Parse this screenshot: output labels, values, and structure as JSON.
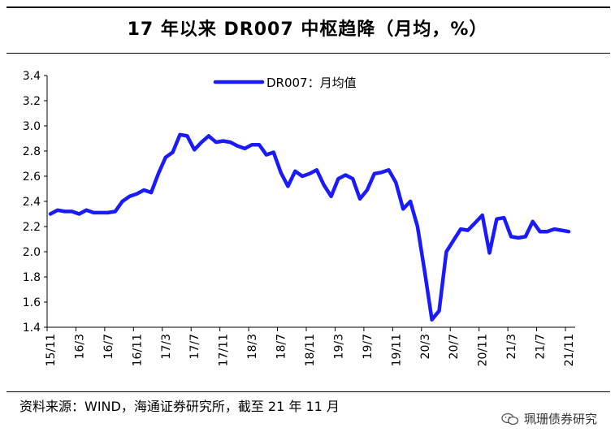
{
  "title": "17 年以来 DR007 中枢趋降（月均，%）",
  "source": "资料来源：WIND，海通证券研究所，截至 21 年 11 月",
  "watermark": {
    "text": "珮珊债券研究",
    "icon": "wechat-icon"
  },
  "colors": {
    "line": "#1a1aff",
    "axis": "#000000"
  },
  "chart_data": {
    "type": "line",
    "title": "17 年以来 DR007 中枢趋降（月均，%）",
    "xlabel": "",
    "ylabel": "",
    "ylim": [
      1.4,
      3.4
    ],
    "yticks": [
      "1.4",
      "1.6",
      "1.8",
      "2.0",
      "2.2",
      "2.4",
      "2.6",
      "2.8",
      "3.0",
      "3.2",
      "3.4"
    ],
    "xticks": [
      "15/11",
      "16/3",
      "16/7",
      "16/11",
      "17/3",
      "17/7",
      "17/11",
      "18/3",
      "18/7",
      "18/11",
      "19/3",
      "19/7",
      "19/11",
      "20/3",
      "20/7",
      "20/11",
      "21/3",
      "21/7",
      "21/11"
    ],
    "legend": "top-center",
    "grid": false,
    "series": [
      {
        "name": "DR007：月均值",
        "x": [
          "15/11",
          "15/12",
          "16/1",
          "16/2",
          "16/3",
          "16/4",
          "16/5",
          "16/6",
          "16/7",
          "16/8",
          "16/9",
          "16/10",
          "16/11",
          "16/12",
          "17/1",
          "17/2",
          "17/3",
          "17/4",
          "17/5",
          "17/6",
          "17/7",
          "17/8",
          "17/9",
          "17/10",
          "17/11",
          "17/12",
          "18/1",
          "18/2",
          "18/3",
          "18/4",
          "18/5",
          "18/6",
          "18/7",
          "18/8",
          "18/9",
          "18/10",
          "18/11",
          "18/12",
          "19/1",
          "19/2",
          "19/3",
          "19/4",
          "19/5",
          "19/6",
          "19/7",
          "19/8",
          "19/9",
          "19/10",
          "19/11",
          "19/12",
          "20/1",
          "20/2",
          "20/3",
          "20/4",
          "20/5",
          "20/6",
          "20/7",
          "20/8",
          "20/9",
          "20/10",
          "20/11",
          "20/12",
          "21/1",
          "21/2",
          "21/3",
          "21/4",
          "21/5",
          "21/6",
          "21/7",
          "21/8",
          "21/9",
          "21/10",
          "21/11"
        ],
        "values": [
          2.3,
          2.33,
          2.32,
          2.32,
          2.3,
          2.33,
          2.31,
          2.31,
          2.31,
          2.32,
          2.4,
          2.44,
          2.46,
          2.49,
          2.47,
          2.62,
          2.75,
          2.79,
          2.93,
          2.92,
          2.81,
          2.87,
          2.92,
          2.87,
          2.88,
          2.87,
          2.84,
          2.82,
          2.85,
          2.85,
          2.77,
          2.79,
          2.63,
          2.52,
          2.64,
          2.6,
          2.62,
          2.65,
          2.53,
          2.44,
          2.58,
          2.61,
          2.58,
          2.42,
          2.49,
          2.62,
          2.63,
          2.65,
          2.55,
          2.34,
          2.4,
          2.2,
          1.84,
          1.46,
          1.53,
          2.0,
          2.09,
          2.18,
          2.17,
          2.23,
          2.29,
          1.99,
          2.26,
          2.27,
          2.12,
          2.11,
          2.12,
          2.24,
          2.16,
          2.16,
          2.18,
          2.17,
          2.16
        ]
      }
    ]
  }
}
